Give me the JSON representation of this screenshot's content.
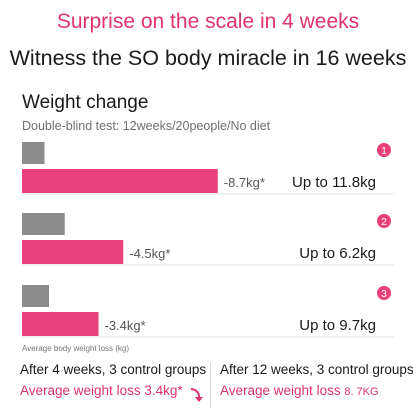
{
  "header": {
    "headline": "Surprise on the scale in 4 weeks",
    "subheadline": "Witness the SO body miracle in 16 weeks"
  },
  "section": {
    "title": "Weight change",
    "note": "Double-blind test: 12weeks/20people/No diet"
  },
  "chart_data": {
    "type": "bar",
    "orientation": "horizontal",
    "groups": [
      {
        "index": "1",
        "control_value": -1.0,
        "product_value": -8.7,
        "product_label": "-8.7kg*",
        "result": "Up to 11.8kg"
      },
      {
        "index": "2",
        "control_value": -1.9,
        "product_value": -4.5,
        "product_label": "-4.5kg*",
        "result": "Up to 6.2kg"
      },
      {
        "index": "3",
        "control_value": -1.2,
        "product_value": -3.4,
        "product_label": "-3.4kg*",
        "result": "Up to 9.7kg"
      }
    ],
    "axis_note": "Average body weight loss (kg)",
    "colors": {
      "control": "#8c8c8c",
      "product": "#e8407a",
      "badge": "#e8407a"
    }
  },
  "footer": {
    "left_line1": "After 4 weeks, 3 control groups",
    "left_line2": "Average weight loss 3.4kg*",
    "right_line1": "After 12 weeks, 3 control groups",
    "right_line2_main": "Average weight loss ",
    "right_line2_value": "8. 7KG"
  }
}
